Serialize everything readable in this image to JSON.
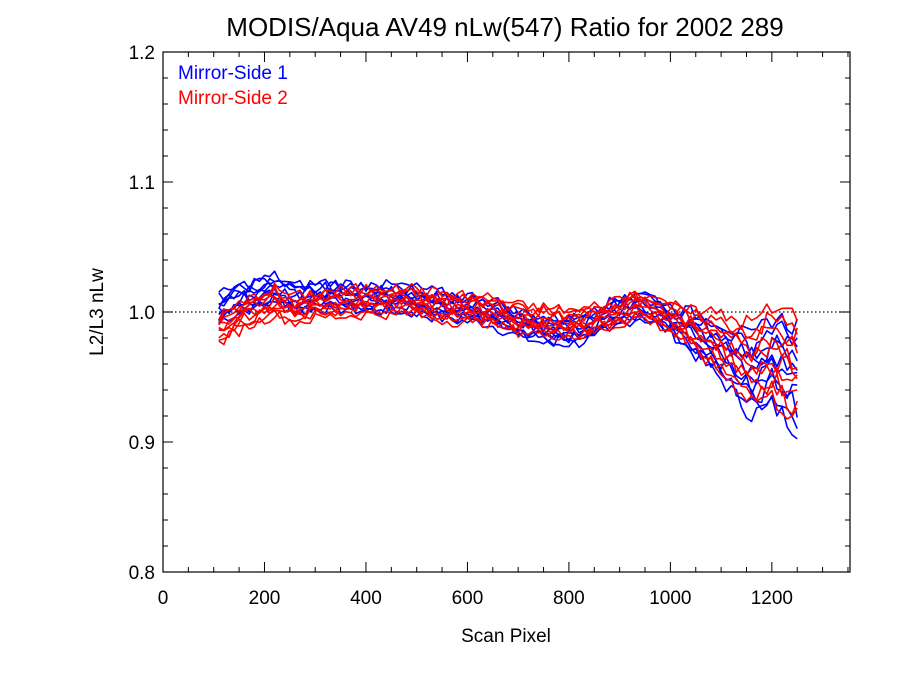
{
  "chart_data": {
    "type": "line",
    "title": "MODIS/Aqua AV49 nLw(547) Ratio for 2002 289",
    "xlabel": "Scan Pixel",
    "ylabel": "L2/L3 nLw",
    "xlim": [
      0,
      1354
    ],
    "ylim": [
      0.8,
      1.2
    ],
    "xticks": [
      "0",
      "200",
      "400",
      "600",
      "800",
      "1000",
      "1200"
    ],
    "yticks": [
      "0.8",
      "0.9",
      "1.0",
      "1.1",
      "1.2"
    ],
    "reference_line": 1.0,
    "legend_position": "top-left",
    "x": [
      110,
      160,
      220,
      260,
      320,
      400,
      480,
      560,
      640,
      700,
      760,
      820,
      880,
      940,
      980,
      1040,
      1100,
      1160,
      1200,
      1250
    ],
    "series": [
      {
        "name": "Mirror-Side 1",
        "color": "#0000ff",
        "values": [
          1.003,
          1.011,
          1.018,
          1.01,
          1.013,
          1.011,
          1.01,
          1.004,
          1.001,
          0.991,
          0.985,
          0.986,
          0.997,
          1.006,
          0.999,
          0.985,
          0.97,
          0.95,
          0.962,
          0.95
        ]
      },
      {
        "name": "Mirror-Side 2",
        "color": "#ff0000",
        "values": [
          0.986,
          0.998,
          1.008,
          1.002,
          1.006,
          1.008,
          1.009,
          1.003,
          1.002,
          0.995,
          0.993,
          0.991,
          0.998,
          1.006,
          0.999,
          0.989,
          0.975,
          0.962,
          0.968,
          0.958
        ]
      }
    ]
  }
}
